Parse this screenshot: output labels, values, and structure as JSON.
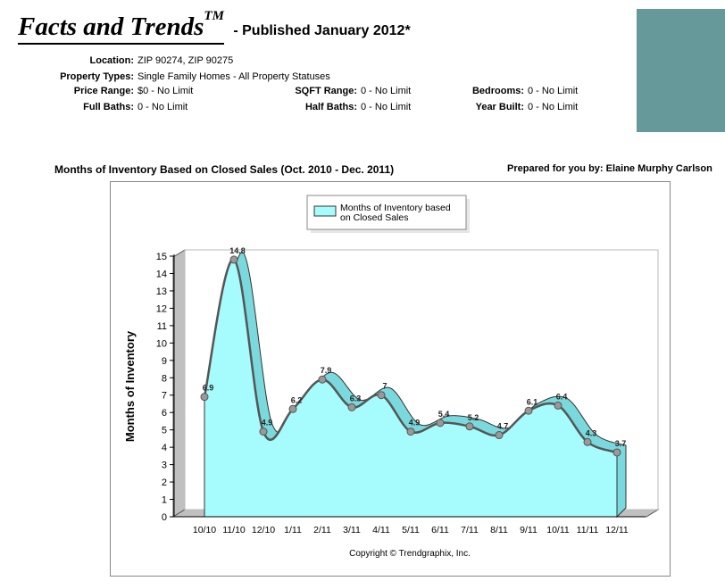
{
  "header": {
    "title": "Facts and Trends",
    "title_mark": "TM",
    "subtitle": "- Published January 2012*"
  },
  "criteria": {
    "location": {
      "label": "Location:",
      "value": "ZIP 90274, ZIP 90275"
    },
    "property_types": {
      "label": "Property Types:",
      "value": "Single Family Homes - All Property Statuses"
    },
    "price_range": {
      "label": "Price Range:",
      "value": "$0 - No Limit"
    },
    "sqft_range": {
      "label": "SQFT Range:",
      "value": "0 - No Limit"
    },
    "bedrooms": {
      "label": "Bedrooms:",
      "value": "0 - No Limit"
    },
    "full_baths": {
      "label": "Full Baths:",
      "value": "0 - No Limit"
    },
    "half_baths": {
      "label": "Half Baths:",
      "value": "0 - No Limit"
    },
    "year_built": {
      "label": "Year Built:",
      "value": "0 - No Limit"
    }
  },
  "prepared_for": "Prepared for you by: Elaine Murphy Carlson",
  "copyright": "Copyright © Trendgraphix, Inc.",
  "colors": {
    "brand_box": "#669999",
    "area_fill": "#a6fbfd",
    "area_side": "#7ad9dc",
    "line": "#555555",
    "marker": "#999999",
    "wall": "#c0c0c0"
  },
  "chart_data": {
    "type": "area",
    "title": "Months of Inventory Based on Closed Sales (Oct. 2010 - Dec. 2011)",
    "ylabel": "Months of Inventory",
    "xlabel": "",
    "ylim": [
      0,
      15
    ],
    "yticks": [
      0,
      1,
      2,
      3,
      4,
      5,
      6,
      7,
      8,
      9,
      10,
      11,
      12,
      13,
      14,
      15
    ],
    "grid": false,
    "legend_position": "top-center",
    "categories": [
      "10/10",
      "11/10",
      "12/10",
      "1/11",
      "2/11",
      "3/11",
      "4/11",
      "5/11",
      "6/11",
      "7/11",
      "8/11",
      "9/11",
      "10/11",
      "11/11",
      "12/11"
    ],
    "series": [
      {
        "name": "Months of Inventory based on Closed Sales",
        "legend_lines": [
          "Months of Inventory based",
          "on Closed Sales"
        ],
        "values": [
          6.9,
          14.8,
          4.9,
          6.2,
          7.9,
          6.3,
          7,
          4.9,
          5.4,
          5.2,
          4.7,
          6.1,
          6.4,
          4.3,
          3.7
        ],
        "labels": [
          "6.9",
          "14.8",
          "4.9",
          "6.2",
          "7.9",
          "6.3",
          "7",
          "4.9",
          "5.4",
          "5.2",
          "4.7",
          "6.1",
          "6.4",
          "4.3",
          "3.7"
        ]
      }
    ]
  }
}
